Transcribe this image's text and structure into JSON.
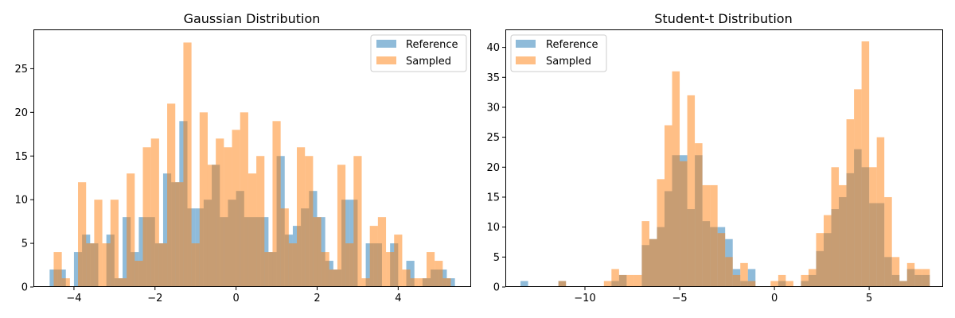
{
  "chart_data": [
    {
      "type": "bar",
      "title": "Gaussian Distribution",
      "xlabel": "",
      "ylabel": "",
      "xlim": [
        -5.0,
        5.8
      ],
      "ylim": [
        0,
        29.5
      ],
      "xticks": [
        -4,
        -2,
        0,
        2,
        4
      ],
      "xtick_labels": [
        "−4",
        "−2",
        "0",
        "2",
        "4"
      ],
      "yticks": [
        0,
        5,
        10,
        15,
        20,
        25
      ],
      "ytick_labels": [
        "0",
        "5",
        "10",
        "15",
        "20",
        "25"
      ],
      "grid": false,
      "legend": {
        "position": "top-right",
        "entries": [
          "Reference",
          "Sampled"
        ]
      },
      "series": [
        {
          "name": "Reference",
          "color": "#1f77b4",
          "opacity": 0.5,
          "bin_width": 0.2,
          "x_left": [
            -4.6,
            -4.4,
            -4.0,
            -3.8,
            -3.6,
            -3.2,
            -3.0,
            -2.8,
            -2.6,
            -2.4,
            -2.2,
            -2.0,
            -1.8,
            -1.6,
            -1.4,
            -1.2,
            -1.0,
            -0.8,
            -0.6,
            -0.4,
            -0.2,
            0.0,
            0.2,
            0.4,
            0.6,
            0.8,
            1.0,
            1.2,
            1.4,
            1.6,
            1.8,
            2.0,
            2.2,
            2.4,
            2.6,
            2.8,
            3.2,
            3.4,
            3.8,
            4.2,
            4.6,
            4.8,
            5.0,
            5.2
          ],
          "values": [
            2,
            2,
            4,
            6,
            5,
            6,
            1,
            8,
            4,
            8,
            8,
            5,
            13,
            12,
            19,
            9,
            9,
            10,
            14,
            8,
            10,
            11,
            8,
            8,
            8,
            4,
            15,
            6,
            7,
            9,
            11,
            8,
            3,
            2,
            10,
            10,
            5,
            5,
            5,
            3,
            1,
            2,
            2,
            1
          ]
        },
        {
          "name": "Sampled",
          "color": "#ff7f0e",
          "opacity": 0.5,
          "bin_width": 0.2,
          "x_left": [
            -4.5,
            -4.3,
            -3.9,
            -3.7,
            -3.5,
            -3.3,
            -3.1,
            -2.9,
            -2.7,
            -2.5,
            -2.3,
            -2.1,
            -1.9,
            -1.7,
            -1.5,
            -1.3,
            -1.1,
            -0.9,
            -0.7,
            -0.5,
            -0.3,
            -0.1,
            0.1,
            0.3,
            0.5,
            0.7,
            0.9,
            1.1,
            1.3,
            1.5,
            1.7,
            1.9,
            2.1,
            2.3,
            2.5,
            2.7,
            2.9,
            3.1,
            3.3,
            3.5,
            3.7,
            3.9,
            4.1,
            4.3,
            4.5,
            4.7,
            4.9,
            5.1
          ],
          "values": [
            4,
            1,
            12,
            5,
            10,
            5,
            10,
            1,
            13,
            3,
            16,
            17,
            5,
            21,
            12,
            28,
            5,
            20,
            14,
            17,
            16,
            18,
            20,
            13,
            15,
            4,
            19,
            9,
            5,
            16,
            15,
            8,
            4,
            2,
            14,
            5,
            15,
            1,
            7,
            8,
            4,
            6,
            2,
            1,
            1,
            4,
            3,
            1
          ]
        }
      ]
    },
    {
      "type": "bar",
      "title": "Student-t Distribution",
      "xlabel": "",
      "ylabel": "",
      "xlim": [
        -14.2,
        8.9
      ],
      "ylim": [
        0,
        43
      ],
      "xticks": [
        -10,
        -5,
        0,
        5
      ],
      "xtick_labels": [
        "−10",
        "−5",
        "0",
        "5"
      ],
      "yticks": [
        0,
        5,
        10,
        15,
        20,
        25,
        30,
        35,
        40
      ],
      "ytick_labels": [
        "0",
        "5",
        "10",
        "15",
        "20",
        "25",
        "30",
        "35",
        "40"
      ],
      "grid": false,
      "legend": {
        "position": "top-left",
        "entries": [
          "Reference",
          "Sampled"
        ]
      },
      "series": [
        {
          "name": "Reference",
          "color": "#1f77b4",
          "opacity": 0.5,
          "bin_width": 0.4,
          "x_left": [
            -13.4,
            -11.4,
            -8.6,
            -8.2,
            -7.0,
            -6.6,
            -6.2,
            -5.8,
            -5.4,
            -5.0,
            -4.6,
            -4.2,
            -3.8,
            -3.4,
            -3.0,
            -2.6,
            -2.2,
            -1.8,
            -1.4,
            0.2,
            1.4,
            1.8,
            2.2,
            2.6,
            3.0,
            3.4,
            3.8,
            4.2,
            4.6,
            5.0,
            5.4,
            5.8,
            6.2,
            6.6,
            7.0,
            7.4,
            7.8
          ],
          "values": [
            1,
            1,
            1,
            2,
            7,
            8,
            10,
            16,
            22,
            22,
            13,
            22,
            11,
            10,
            10,
            8,
            3,
            1,
            3,
            1,
            1,
            2,
            6,
            9,
            13,
            15,
            19,
            23,
            20,
            14,
            14,
            5,
            2,
            1,
            3,
            2,
            2
          ]
        },
        {
          "name": "Sampled",
          "color": "#ff7f0e",
          "opacity": 0.5,
          "bin_width": 0.4,
          "x_left": [
            -11.4,
            -9.0,
            -8.6,
            -8.2,
            -7.8,
            -7.4,
            -7.0,
            -6.6,
            -6.2,
            -5.8,
            -5.4,
            -5.0,
            -4.6,
            -4.2,
            -3.8,
            -3.4,
            -3.0,
            -2.6,
            -2.2,
            -1.8,
            -1.4,
            -0.2,
            0.2,
            0.6,
            1.4,
            1.8,
            2.2,
            2.6,
            3.0,
            3.4,
            3.8,
            4.2,
            4.6,
            5.0,
            5.4,
            5.8,
            6.2,
            6.6,
            7.0,
            7.4,
            7.8
          ],
          "values": [
            1,
            1,
            3,
            2,
            2,
            2,
            11,
            8,
            18,
            27,
            36,
            21,
            32,
            24,
            17,
            17,
            9,
            5,
            2,
            4,
            1,
            1,
            2,
            1,
            2,
            3,
            9,
            12,
            20,
            17,
            28,
            33,
            41,
            20,
            25,
            15,
            5,
            1,
            4,
            3,
            3
          ]
        }
      ]
    }
  ]
}
